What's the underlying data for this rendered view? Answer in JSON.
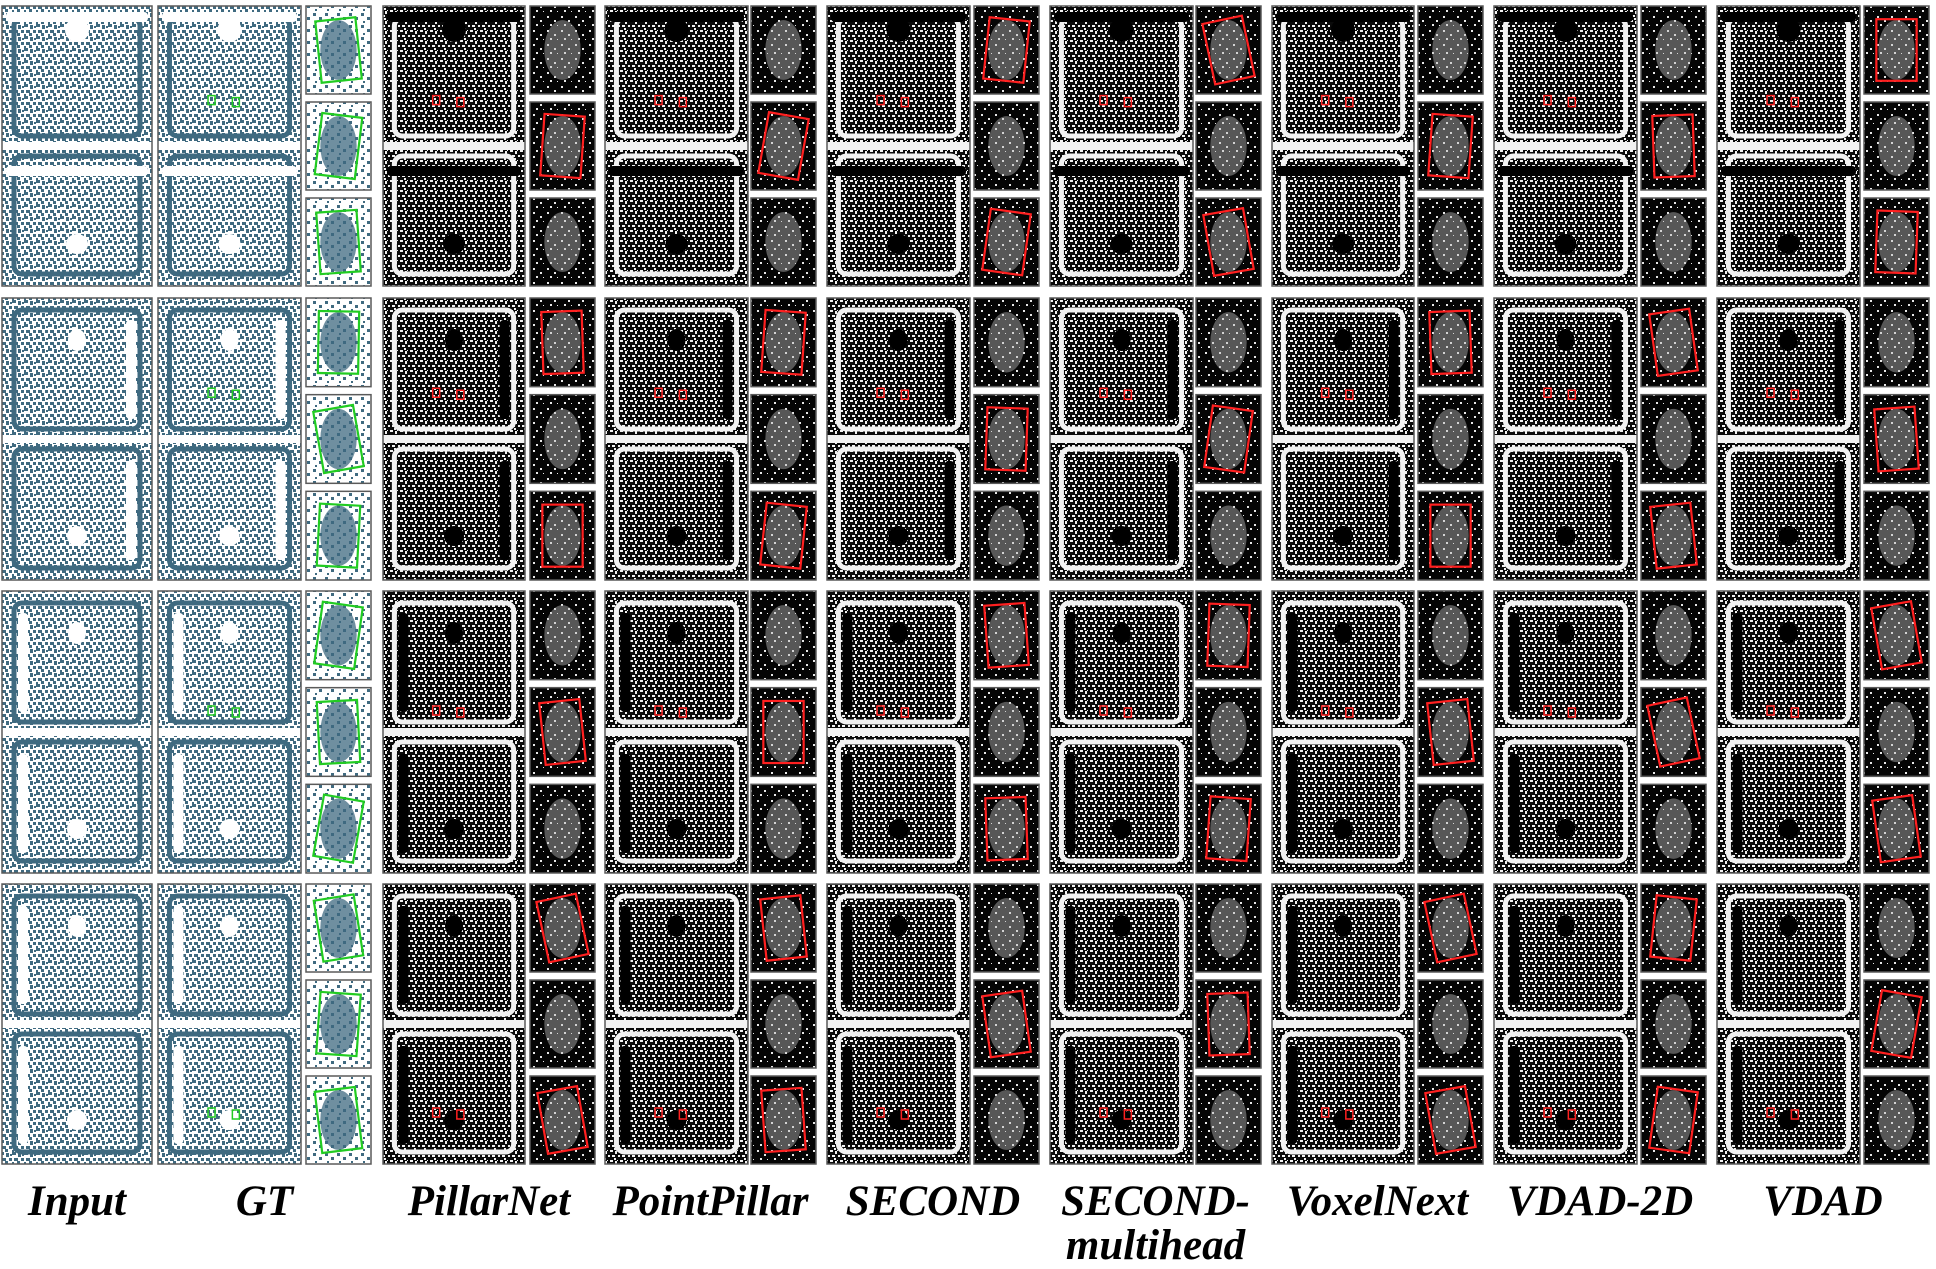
{
  "figure": {
    "row_count": 4,
    "columns": [
      {
        "key": "input",
        "label": "Input",
        "style": "teal",
        "has_crops": false
      },
      {
        "key": "gt",
        "label": "GT",
        "style": "teal",
        "has_crops": true,
        "box_color": "#22cc22"
      },
      {
        "key": "pillarnet",
        "label": "PillarNet",
        "style": "bw",
        "has_crops": true,
        "box_color": "#ff2020"
      },
      {
        "key": "pointpillar",
        "label": "PointPillar",
        "style": "bw",
        "has_crops": true,
        "box_color": "#ff2020"
      },
      {
        "key": "second",
        "label": "SECOND",
        "style": "bw",
        "has_crops": true,
        "box_color": "#ff2020"
      },
      {
        "key": "second_multihead",
        "label": "SECOND-\nmultihead",
        "style": "bw",
        "has_crops": true,
        "box_color": "#ff2020"
      },
      {
        "key": "voxelnext",
        "label": "VoxelNext",
        "style": "bw",
        "has_crops": true,
        "box_color": "#ff2020"
      },
      {
        "key": "vdad_2d",
        "label": "VDAD-2D",
        "style": "bw",
        "has_crops": true,
        "box_color": "#ff2020"
      },
      {
        "key": "vdad",
        "label": "VDAD",
        "style": "bw",
        "has_crops": true,
        "box_color": "#ff2020"
      }
    ],
    "colors": {
      "teal_bg": "#ffffff",
      "teal_dot": "#3f6a80",
      "bw_bg": "#0a0a0a",
      "bw_dot": "#f2f2f2",
      "gt_box": "#22cc22",
      "pred_box": "#ff2020"
    }
  }
}
